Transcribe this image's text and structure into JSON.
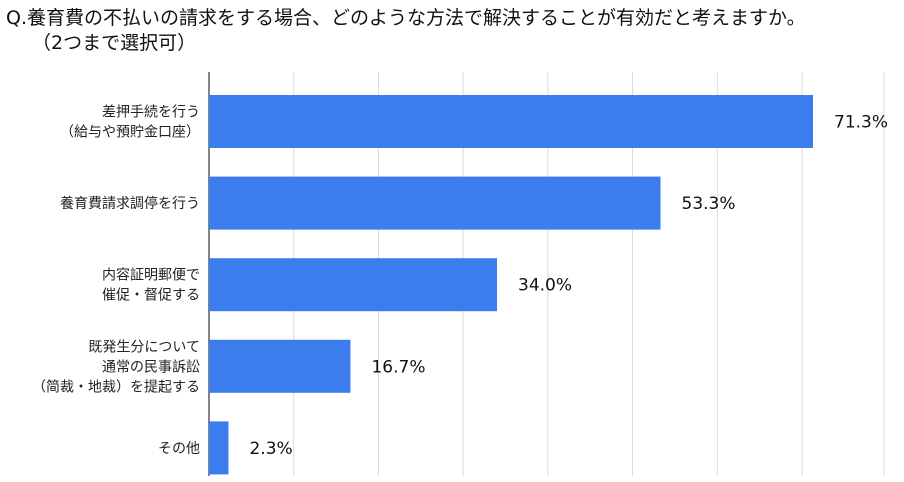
{
  "header": {
    "title": "Q.養育費の不払いの請求をする場合、どのような方法で解決することが有効だと考えますか。",
    "subtitle": "（2つまで選択可）"
  },
  "chart_data": {
    "type": "bar",
    "orientation": "horizontal",
    "title": "Q.養育費の不払いの請求をする場合、どのような方法で解決することが有効だと考えますか。",
    "subtitle": "（2つまで選択可）",
    "categories": [
      [
        "差押手続を行う",
        "（給与や預貯金口座）"
      ],
      [
        "養育費請求調停を行う"
      ],
      [
        "内容証明郵便で",
        "催促・督促する"
      ],
      [
        "既発生分について",
        "通常の民事訴訟",
        "（简裁・地裁）を提起する"
      ],
      [
        "その他"
      ]
    ],
    "values": [
      71.3,
      53.3,
      34.0,
      16.7,
      2.3
    ],
    "value_labels": [
      "71.3%",
      "53.3%",
      "34.0%",
      "16.7%",
      "2.3%"
    ],
    "xlim": [
      0,
      80
    ],
    "grid": true,
    "legend": "none",
    "colors": {
      "bar": "#3b7ded",
      "grid": "#d9d9d9",
      "axis": "#333333"
    }
  }
}
